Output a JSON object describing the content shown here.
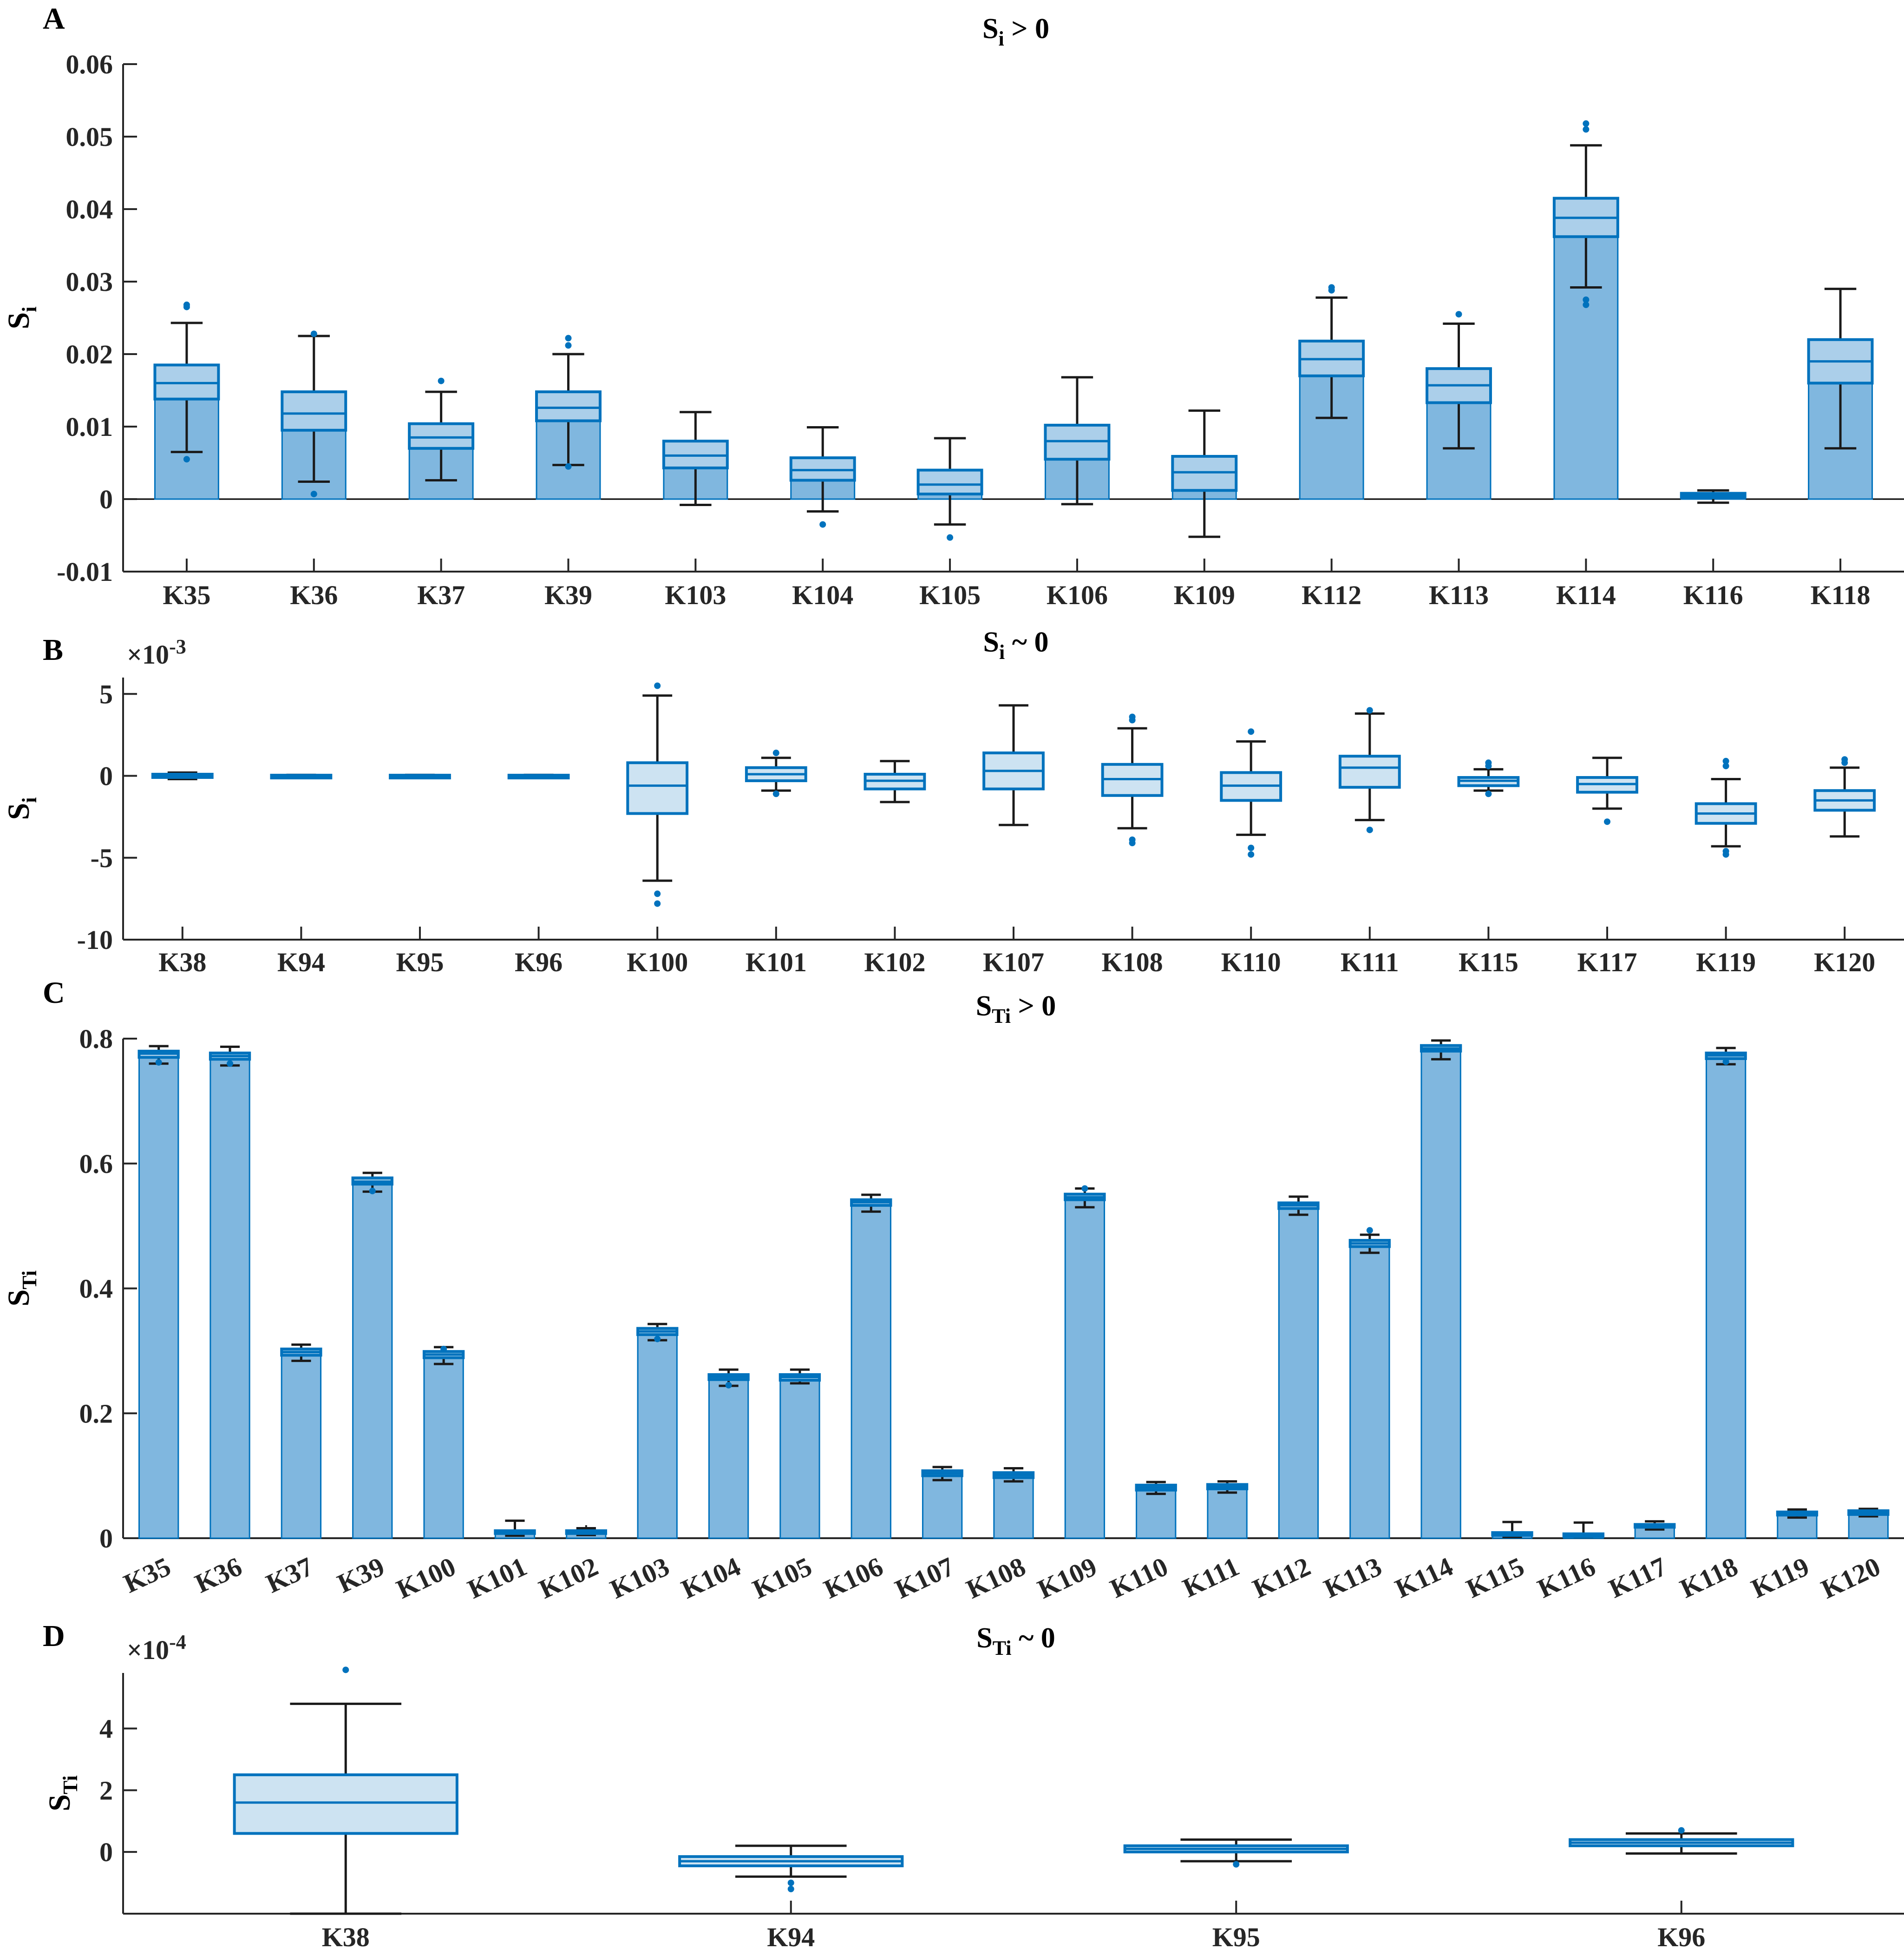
{
  "colors": {
    "bar": "#80B7DF",
    "box_fill": "#CDE3F2",
    "box_edge": "#0072BD",
    "whisker": "#1a1a1a",
    "outlier": "#0072BD"
  },
  "panels": [
    {
      "letter": "A",
      "title": {
        "main": "S",
        "sub": "i",
        "suffix": " > 0"
      },
      "ylabel": {
        "main": "S",
        "sub": "i"
      },
      "exponent": "",
      "ticks": [
        "-0.01",
        "0",
        "0.01",
        "0.02",
        "0.03",
        "0.04",
        "0.05",
        "0.06"
      ]
    },
    {
      "letter": "B",
      "title": {
        "main": "S",
        "sub": "i",
        "suffix": " ~ 0"
      },
      "ylabel": {
        "main": "S",
        "sub": "i"
      },
      "exponent": {
        "base": "×10",
        "power": "-3"
      },
      "ticks": [
        "-10",
        "-5",
        "0",
        "5"
      ]
    },
    {
      "letter": "C",
      "title": {
        "main": "S",
        "sub": "Ti",
        "suffix": " > 0"
      },
      "ylabel": {
        "main": "S",
        "sub": "Ti"
      },
      "exponent": "",
      "ticks": [
        "0",
        "0.2",
        "0.4",
        "0.6",
        "0.8"
      ]
    },
    {
      "letter": "D",
      "title": {
        "main": "S",
        "sub": "Ti",
        "suffix": " ~ 0"
      },
      "ylabel": {
        "main": "S",
        "sub": "Ti"
      },
      "exponent": {
        "base": "×10",
        "power": "-4"
      },
      "ticks": [
        "0",
        "2",
        "4"
      ]
    }
  ],
  "chart_data": [
    {
      "type": "bar+box",
      "ylim": [
        -0.01,
        0.06
      ],
      "categories": [
        "K35",
        "K36",
        "K37",
        "K39",
        "K103",
        "K104",
        "K105",
        "K106",
        "K109",
        "K112",
        "K113",
        "K114",
        "K116",
        "K118"
      ],
      "values": [
        0.0185,
        0.0148,
        0.0104,
        0.0148,
        0.008,
        0.0057,
        0.004,
        0.0102,
        0.0059,
        0.0218,
        0.018,
        0.0415,
        0.0008,
        0.022
      ],
      "boxes": [
        {
          "q1": 0.0138,
          "med": 0.016,
          "q3": 0.0185,
          "wlo": 0.0065,
          "whi": 0.0243,
          "out": [
            0.0055,
            0.0265,
            0.0268
          ]
        },
        {
          "q1": 0.0095,
          "med": 0.0118,
          "q3": 0.0148,
          "wlo": 0.0024,
          "whi": 0.0225,
          "out": [
            0.0007,
            0.0228
          ]
        },
        {
          "q1": 0.007,
          "med": 0.0085,
          "q3": 0.0104,
          "wlo": 0.0026,
          "whi": 0.0148,
          "out": [
            0.0163
          ]
        },
        {
          "q1": 0.0108,
          "med": 0.0126,
          "q3": 0.0148,
          "wlo": 0.0047,
          "whi": 0.02,
          "out": [
            0.0045,
            0.0212,
            0.0222
          ]
        },
        {
          "q1": 0.0043,
          "med": 0.006,
          "q3": 0.008,
          "wlo": -0.0008,
          "whi": 0.012,
          "out": []
        },
        {
          "q1": 0.0026,
          "med": 0.004,
          "q3": 0.0057,
          "wlo": -0.0017,
          "whi": 0.0099,
          "out": [
            -0.0035
          ]
        },
        {
          "q1": 0.0007,
          "med": 0.002,
          "q3": 0.004,
          "wlo": -0.0035,
          "whi": 0.0084,
          "out": [
            -0.0053
          ]
        },
        {
          "q1": 0.0055,
          "med": 0.008,
          "q3": 0.0102,
          "wlo": -0.0007,
          "whi": 0.0168,
          "out": []
        },
        {
          "q1": 0.0012,
          "med": 0.0037,
          "q3": 0.0059,
          "wlo": -0.0052,
          "whi": 0.0122,
          "out": []
        },
        {
          "q1": 0.017,
          "med": 0.0193,
          "q3": 0.0218,
          "wlo": 0.0112,
          "whi": 0.0278,
          "out": [
            0.0288,
            0.0292
          ]
        },
        {
          "q1": 0.0133,
          "med": 0.0157,
          "q3": 0.018,
          "wlo": 0.007,
          "whi": 0.0242,
          "out": [
            0.0255
          ]
        },
        {
          "q1": 0.0362,
          "med": 0.0388,
          "q3": 0.0415,
          "wlo": 0.0292,
          "whi": 0.0488,
          "out": [
            0.0268,
            0.0275,
            0.051,
            0.0518
          ]
        },
        {
          "q1": 0.0002,
          "med": 0.0005,
          "q3": 0.0008,
          "wlo": -0.0005,
          "whi": 0.0012,
          "out": []
        },
        {
          "q1": 0.016,
          "med": 0.019,
          "q3": 0.022,
          "wlo": 0.007,
          "whi": 0.029,
          "out": []
        }
      ]
    },
    {
      "type": "box",
      "ylim": [
        -10,
        6
      ],
      "categories": [
        "K38",
        "K94",
        "K95",
        "K96",
        "K100",
        "K101",
        "K102",
        "K107",
        "K108",
        "K110",
        "K111",
        "K115",
        "K117",
        "K119",
        "K120"
      ],
      "boxes": [
        {
          "q1": -0.1,
          "med": 0.0,
          "q3": 0.1,
          "wlo": -0.2,
          "whi": 0.2,
          "out": []
        },
        {
          "q1": -0.04,
          "med": 0.0,
          "q3": 0.04,
          "wlo": -0.06,
          "whi": 0.06,
          "out": []
        },
        {
          "q1": -0.04,
          "med": 0.0,
          "q3": 0.04,
          "wlo": -0.06,
          "whi": 0.06,
          "out": []
        },
        {
          "q1": -0.04,
          "med": 0.0,
          "q3": 0.04,
          "wlo": -0.06,
          "whi": 0.06,
          "out": []
        },
        {
          "q1": -2.3,
          "med": -0.6,
          "q3": 0.8,
          "wlo": -6.4,
          "whi": 4.9,
          "out": [
            -7.2,
            -7.8,
            5.5
          ]
        },
        {
          "q1": -0.3,
          "med": 0.1,
          "q3": 0.5,
          "wlo": -0.9,
          "whi": 1.1,
          "out": [
            1.4,
            -1.1
          ]
        },
        {
          "q1": -0.8,
          "med": -0.3,
          "q3": 0.1,
          "wlo": -1.6,
          "whi": 0.9,
          "out": []
        },
        {
          "q1": -0.8,
          "med": 0.3,
          "q3": 1.4,
          "wlo": -3.0,
          "whi": 4.3,
          "out": []
        },
        {
          "q1": -1.2,
          "med": -0.2,
          "q3": 0.7,
          "wlo": -3.2,
          "whi": 2.9,
          "out": [
            -3.9,
            -4.1,
            3.4,
            3.6
          ]
        },
        {
          "q1": -1.5,
          "med": -0.6,
          "q3": 0.2,
          "wlo": -3.6,
          "whi": 2.1,
          "out": [
            -4.4,
            -4.8,
            2.7
          ]
        },
        {
          "q1": -0.7,
          "med": 0.5,
          "q3": 1.2,
          "wlo": -2.7,
          "whi": 3.8,
          "out": [
            -3.3,
            4.0
          ]
        },
        {
          "q1": -0.6,
          "med": -0.3,
          "q3": -0.1,
          "wlo": -0.9,
          "whi": 0.4,
          "out": [
            -1.1,
            0.6,
            0.8
          ]
        },
        {
          "q1": -1.0,
          "med": -0.5,
          "q3": -0.1,
          "wlo": -2.0,
          "whi": 1.1,
          "out": [
            -2.8
          ]
        },
        {
          "q1": -2.9,
          "med": -2.3,
          "q3": -1.7,
          "wlo": -4.3,
          "whi": -0.2,
          "out": [
            -4.6,
            -4.8,
            0.6,
            0.9
          ]
        },
        {
          "q1": -2.1,
          "med": -1.5,
          "q3": -0.9,
          "wlo": -3.7,
          "whi": 0.5,
          "out": [
            0.8,
            1.0
          ]
        }
      ]
    },
    {
      "type": "bar+box",
      "ylim": [
        0,
        0.8
      ],
      "categories": [
        "K35",
        "K36",
        "K37",
        "K39",
        "K100",
        "K101",
        "K102",
        "K103",
        "K104",
        "K105",
        "K106",
        "K107",
        "K108",
        "K109",
        "K110",
        "K111",
        "K112",
        "K113",
        "K114",
        "K115",
        "K116",
        "K117",
        "K118",
        "K119",
        "K120"
      ],
      "values": [
        0.777,
        0.774,
        0.3,
        0.575,
        0.296,
        0.011,
        0.011,
        0.333,
        0.26,
        0.26,
        0.54,
        0.105,
        0.103,
        0.549,
        0.083,
        0.084,
        0.535,
        0.475,
        0.787,
        0.008,
        0.006,
        0.022,
        0.775,
        0.041,
        0.043
      ],
      "boxes": [
        {
          "q1": 0.77,
          "med": 0.776,
          "q3": 0.78,
          "wlo": 0.76,
          "whi": 0.788,
          "out": [
            0.762
          ]
        },
        {
          "q1": 0.767,
          "med": 0.772,
          "q3": 0.777,
          "wlo": 0.757,
          "whi": 0.787,
          "out": [
            0.76
          ]
        },
        {
          "q1": 0.293,
          "med": 0.298,
          "q3": 0.303,
          "wlo": 0.284,
          "whi": 0.31,
          "out": []
        },
        {
          "q1": 0.567,
          "med": 0.571,
          "q3": 0.577,
          "wlo": 0.555,
          "whi": 0.585,
          "out": [
            0.556
          ]
        },
        {
          "q1": 0.289,
          "med": 0.294,
          "q3": 0.299,
          "wlo": 0.279,
          "whi": 0.306,
          "out": [
            0.303
          ]
        },
        {
          "q1": 0.008,
          "med": 0.01,
          "q3": 0.012,
          "wlo": 0.004,
          "whi": 0.028,
          "out": []
        },
        {
          "q1": 0.008,
          "med": 0.01,
          "q3": 0.012,
          "wlo": 0.005,
          "whi": 0.016,
          "out": []
        },
        {
          "q1": 0.326,
          "med": 0.331,
          "q3": 0.336,
          "wlo": 0.317,
          "whi": 0.343,
          "out": [
            0.319
          ]
        },
        {
          "q1": 0.254,
          "med": 0.258,
          "q3": 0.262,
          "wlo": 0.244,
          "whi": 0.27,
          "out": [
            0.245
          ]
        },
        {
          "q1": 0.253,
          "med": 0.258,
          "q3": 0.262,
          "wlo": 0.248,
          "whi": 0.27,
          "out": []
        },
        {
          "q1": 0.533,
          "med": 0.538,
          "q3": 0.542,
          "wlo": 0.523,
          "whi": 0.55,
          "out": []
        },
        {
          "q1": 0.1,
          "med": 0.104,
          "q3": 0.108,
          "wlo": 0.093,
          "whi": 0.114,
          "out": []
        },
        {
          "q1": 0.097,
          "med": 0.101,
          "q3": 0.105,
          "wlo": 0.091,
          "whi": 0.112,
          "out": []
        },
        {
          "q1": 0.542,
          "med": 0.546,
          "q3": 0.551,
          "wlo": 0.53,
          "whi": 0.56,
          "out": [
            0.56
          ]
        },
        {
          "q1": 0.077,
          "med": 0.081,
          "q3": 0.085,
          "wlo": 0.071,
          "whi": 0.09,
          "out": []
        },
        {
          "q1": 0.079,
          "med": 0.082,
          "q3": 0.086,
          "wlo": 0.073,
          "whi": 0.091,
          "out": []
        },
        {
          "q1": 0.528,
          "med": 0.533,
          "q3": 0.537,
          "wlo": 0.518,
          "whi": 0.547,
          "out": []
        },
        {
          "q1": 0.467,
          "med": 0.472,
          "q3": 0.477,
          "wlo": 0.457,
          "whi": 0.486,
          "out": [
            0.493
          ]
        },
        {
          "q1": 0.78,
          "med": 0.784,
          "q3": 0.789,
          "wlo": 0.767,
          "whi": 0.797,
          "out": []
        },
        {
          "q1": 0.005,
          "med": 0.007,
          "q3": 0.009,
          "wlo": 0.002,
          "whi": 0.026,
          "out": []
        },
        {
          "q1": 0.004,
          "med": 0.006,
          "q3": 0.007,
          "wlo": 0.002,
          "whi": 0.025,
          "out": []
        },
        {
          "q1": 0.018,
          "med": 0.02,
          "q3": 0.022,
          "wlo": 0.014,
          "whi": 0.027,
          "out": []
        },
        {
          "q1": 0.768,
          "med": 0.773,
          "q3": 0.777,
          "wlo": 0.759,
          "whi": 0.785,
          "out": [
            0.763
          ]
        },
        {
          "q1": 0.037,
          "med": 0.04,
          "q3": 0.042,
          "wlo": 0.033,
          "whi": 0.046,
          "out": []
        },
        {
          "q1": 0.038,
          "med": 0.041,
          "q3": 0.044,
          "wlo": 0.035,
          "whi": 0.047,
          "out": []
        }
      ]
    },
    {
      "type": "box",
      "ylim": [
        -2,
        5.8
      ],
      "categories": [
        "K38",
        "K94",
        "K95",
        "K96"
      ],
      "boxes": [
        {
          "q1": 0.6,
          "med": 1.6,
          "q3": 2.5,
          "wlo": -2.0,
          "whi": 4.8,
          "out": [
            5.9
          ]
        },
        {
          "q1": -0.45,
          "med": -0.3,
          "q3": -0.15,
          "wlo": -0.8,
          "whi": 0.2,
          "out": [
            -1.0,
            -1.2
          ]
        },
        {
          "q1": 0.0,
          "med": 0.1,
          "q3": 0.2,
          "wlo": -0.3,
          "whi": 0.4,
          "out": [
            -0.4
          ]
        },
        {
          "q1": 0.2,
          "med": 0.3,
          "q3": 0.4,
          "wlo": -0.05,
          "whi": 0.6,
          "out": [
            0.7
          ]
        }
      ]
    }
  ]
}
